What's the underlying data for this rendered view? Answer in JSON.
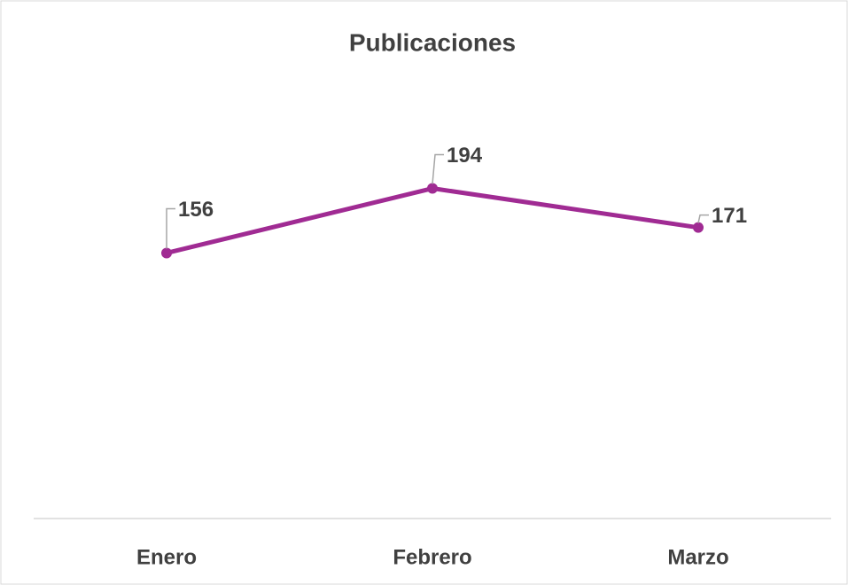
{
  "chart_data": {
    "type": "line",
    "title": "Publicaciones",
    "categories": [
      "Enero",
      "Febrero",
      "Marzo"
    ],
    "series": [
      {
        "name": "Publicaciones",
        "color": "#a02b93",
        "values": [
          156,
          194,
          171
        ]
      }
    ],
    "ylim": [
      0,
      250
    ],
    "data_labels": true
  }
}
